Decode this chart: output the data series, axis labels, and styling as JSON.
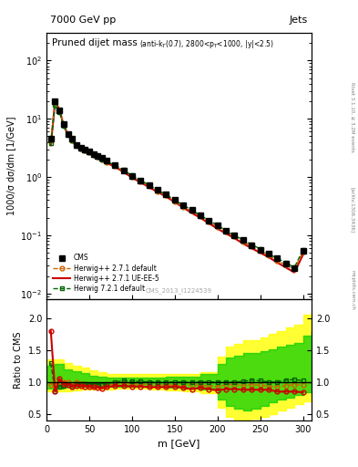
{
  "title_top": "7000 GeV pp",
  "title_right": "Jets",
  "plot_title": "Pruned dijet mass",
  "plot_subtitle": "(anti-k_{T}(0.7), 2800<p_{T}<1000, |y|<2.5)",
  "ylabel_main": "1000/σ dσ/dm [1/GeV]",
  "ylabel_ratio": "Ratio to CMS",
  "xlabel": "m [GeV]",
  "watermark": "CMS_2013_I1224539",
  "right_label": "Rivet 3.1.10, ≥ 3.2M events",
  "arxiv_label": "[arXiv:1306.3436]",
  "mcplots_label": "mcplots.cern.ch",
  "cms_x": [
    5,
    10,
    15,
    20,
    25,
    30,
    35,
    40,
    45,
    50,
    55,
    60,
    65,
    70,
    80,
    90,
    100,
    110,
    120,
    130,
    140,
    150,
    160,
    170,
    180,
    190,
    200,
    210,
    220,
    230,
    240,
    250,
    260,
    270,
    280,
    290,
    300
  ],
  "cms_y": [
    4.5,
    20,
    14,
    8,
    5.5,
    4.5,
    3.5,
    3.2,
    3.0,
    2.8,
    2.5,
    2.3,
    2.1,
    1.9,
    1.6,
    1.3,
    1.05,
    0.87,
    0.73,
    0.6,
    0.5,
    0.4,
    0.33,
    0.27,
    0.22,
    0.18,
    0.15,
    0.12,
    0.1,
    0.082,
    0.068,
    0.057,
    0.048,
    0.04,
    0.033,
    0.027,
    0.055
  ],
  "hw271d_x": [
    5,
    10,
    15,
    20,
    25,
    30,
    35,
    40,
    45,
    50,
    55,
    60,
    65,
    70,
    80,
    90,
    100,
    110,
    120,
    130,
    140,
    150,
    160,
    170,
    180,
    190,
    200,
    210,
    220,
    230,
    240,
    250,
    260,
    270,
    280,
    290,
    300
  ],
  "hw271d_y": [
    4.3,
    19,
    14,
    8,
    5.5,
    4.3,
    3.5,
    3.1,
    2.9,
    2.7,
    2.4,
    2.2,
    2.0,
    1.8,
    1.55,
    1.27,
    1.02,
    0.84,
    0.7,
    0.57,
    0.48,
    0.38,
    0.31,
    0.26,
    0.21,
    0.17,
    0.14,
    0.115,
    0.096,
    0.078,
    0.065,
    0.054,
    0.045,
    0.037,
    0.031,
    0.026,
    0.052
  ],
  "hw271ue_x": [
    5,
    10,
    15,
    20,
    25,
    30,
    35,
    40,
    45,
    50,
    55,
    60,
    65,
    70,
    80,
    90,
    100,
    110,
    120,
    130,
    140,
    150,
    160,
    170,
    180,
    190,
    200,
    210,
    220,
    230,
    240,
    250,
    260,
    270,
    280,
    290,
    300
  ],
  "hw271ue_y": [
    3.5,
    20,
    14.5,
    7.8,
    5.3,
    4.2,
    3.3,
    3.0,
    2.8,
    2.6,
    2.3,
    2.1,
    1.9,
    1.75,
    1.5,
    1.22,
    0.98,
    0.81,
    0.67,
    0.55,
    0.46,
    0.37,
    0.3,
    0.24,
    0.2,
    0.16,
    0.13,
    0.107,
    0.089,
    0.072,
    0.06,
    0.05,
    0.042,
    0.034,
    0.028,
    0.023,
    0.046
  ],
  "hw721d_x": [
    5,
    10,
    15,
    20,
    25,
    30,
    35,
    40,
    45,
    50,
    55,
    60,
    65,
    70,
    80,
    90,
    100,
    110,
    120,
    130,
    140,
    150,
    160,
    170,
    180,
    190,
    200,
    210,
    220,
    230,
    240,
    250,
    260,
    270,
    280,
    290,
    300
  ],
  "hw721d_y": [
    3.8,
    17,
    13,
    7.5,
    5.2,
    4.2,
    3.4,
    3.1,
    2.9,
    2.7,
    2.4,
    2.2,
    2.0,
    1.85,
    1.6,
    1.32,
    1.06,
    0.88,
    0.73,
    0.6,
    0.5,
    0.4,
    0.33,
    0.27,
    0.22,
    0.18,
    0.15,
    0.12,
    0.1,
    0.083,
    0.07,
    0.058,
    0.048,
    0.04,
    0.034,
    0.028,
    0.056
  ],
  "ratio_hw271d_x": [
    5,
    10,
    15,
    20,
    25,
    30,
    35,
    40,
    45,
    50,
    55,
    60,
    65,
    70,
    80,
    90,
    100,
    110,
    120,
    130,
    140,
    150,
    160,
    170,
    180,
    190,
    200,
    210,
    220,
    230,
    240,
    250,
    260,
    270,
    280,
    290,
    300
  ],
  "ratio_hw271d_y": [
    0.96,
    0.95,
    1.0,
    1.0,
    1.0,
    0.96,
    1.0,
    0.97,
    0.97,
    0.96,
    0.96,
    0.96,
    0.95,
    0.95,
    0.97,
    0.98,
    0.97,
    0.97,
    0.96,
    0.95,
    0.96,
    0.95,
    0.94,
    0.96,
    0.95,
    0.94,
    0.93,
    0.96,
    0.96,
    0.95,
    0.96,
    0.95,
    0.94,
    0.93,
    0.94,
    0.96,
    0.95
  ],
  "ratio_hw271ue_x": [
    5,
    10,
    15,
    20,
    25,
    30,
    35,
    40,
    45,
    50,
    55,
    60,
    65,
    70,
    80,
    90,
    100,
    110,
    120,
    130,
    140,
    150,
    160,
    170,
    180,
    190,
    200,
    210,
    220,
    230,
    240,
    250,
    260,
    270,
    280,
    290,
    300
  ],
  "ratio_hw271ue_y": [
    1.8,
    0.85,
    1.05,
    0.97,
    0.96,
    0.93,
    0.94,
    0.94,
    0.93,
    0.93,
    0.92,
    0.91,
    0.9,
    0.92,
    0.94,
    0.94,
    0.93,
    0.93,
    0.92,
    0.92,
    0.92,
    0.93,
    0.91,
    0.89,
    0.91,
    0.89,
    0.87,
    0.89,
    0.89,
    0.88,
    0.88,
    0.88,
    0.88,
    0.85,
    0.85,
    0.85,
    0.84
  ],
  "ratio_hw721d_x": [
    5,
    10,
    15,
    20,
    25,
    30,
    35,
    40,
    45,
    50,
    55,
    60,
    65,
    70,
    80,
    90,
    100,
    110,
    120,
    130,
    140,
    150,
    160,
    170,
    180,
    190,
    200,
    210,
    220,
    230,
    240,
    250,
    260,
    270,
    280,
    290,
    300
  ],
  "ratio_hw721d_y": [
    1.3,
    0.85,
    0.93,
    0.94,
    0.95,
    0.93,
    0.97,
    0.97,
    0.97,
    0.96,
    0.96,
    0.96,
    0.95,
    0.97,
    1.0,
    1.02,
    1.01,
    1.01,
    1.0,
    1.0,
    1.0,
    1.0,
    1.0,
    1.0,
    1.0,
    1.0,
    1.0,
    1.0,
    1.0,
    1.01,
    1.03,
    1.02,
    1.0,
    1.0,
    1.03,
    1.04,
    1.02
  ],
  "band_yellow_x": [
    0,
    10,
    20,
    30,
    40,
    50,
    60,
    70,
    80,
    100,
    120,
    140,
    160,
    180,
    200,
    210,
    220,
    230,
    240,
    250,
    260,
    270,
    280,
    290,
    300,
    310
  ],
  "band_yellow_low": [
    0.85,
    0.85,
    0.85,
    0.87,
    0.88,
    0.88,
    0.88,
    0.88,
    0.9,
    0.9,
    0.88,
    0.87,
    0.85,
    0.82,
    0.6,
    0.45,
    0.4,
    0.38,
    0.42,
    0.45,
    0.5,
    0.55,
    0.6,
    0.65,
    0.7,
    0.75
  ],
  "band_yellow_high": [
    1.35,
    1.35,
    1.3,
    1.25,
    1.22,
    1.18,
    1.15,
    1.12,
    1.12,
    1.12,
    1.12,
    1.12,
    1.13,
    1.15,
    1.4,
    1.55,
    1.6,
    1.65,
    1.65,
    1.7,
    1.75,
    1.8,
    1.85,
    1.9,
    2.05,
    2.1
  ],
  "band_green_x": [
    0,
    10,
    20,
    30,
    40,
    50,
    60,
    70,
    80,
    100,
    120,
    140,
    160,
    180,
    200,
    210,
    220,
    230,
    240,
    250,
    260,
    270,
    280,
    290,
    300,
    310
  ],
  "band_green_low": [
    0.9,
    0.9,
    0.92,
    0.93,
    0.93,
    0.93,
    0.92,
    0.92,
    0.93,
    0.93,
    0.92,
    0.91,
    0.9,
    0.88,
    0.72,
    0.62,
    0.58,
    0.55,
    0.58,
    0.62,
    0.68,
    0.72,
    0.75,
    0.8,
    0.84,
    0.88
  ],
  "band_green_high": [
    1.25,
    1.28,
    1.2,
    1.17,
    1.14,
    1.1,
    1.08,
    1.07,
    1.07,
    1.07,
    1.07,
    1.08,
    1.09,
    1.12,
    1.28,
    1.38,
    1.42,
    1.45,
    1.45,
    1.48,
    1.52,
    1.55,
    1.58,
    1.62,
    1.73,
    1.8
  ],
  "color_cms": "#000000",
  "color_hw271d": "#cc6600",
  "color_hw271ue": "#cc0000",
  "color_hw721d": "#006600",
  "color_band_yellow": "#ffff00",
  "color_band_green": "#00cc00",
  "xlim": [
    0,
    310
  ],
  "ylim_main": [
    0.008,
    300
  ],
  "ylim_ratio": [
    0.4,
    2.3
  ],
  "ratio_yticks": [
    0.5,
    1.0,
    1.5,
    2.0
  ]
}
